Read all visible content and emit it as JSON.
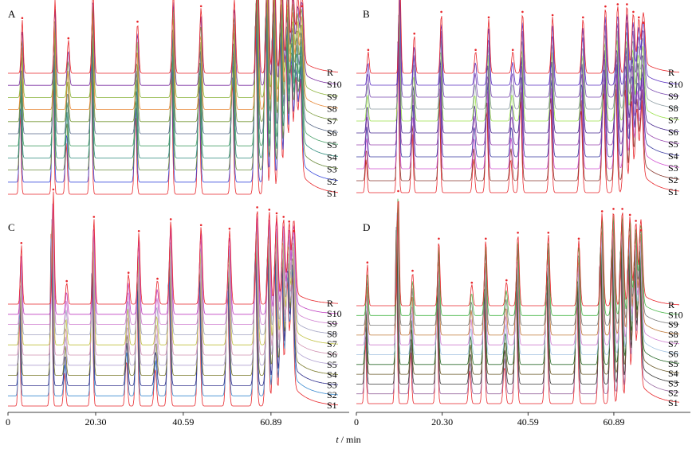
{
  "figure": {
    "xlabel_italic": "t",
    "xlabel_unit": " / min"
  },
  "chart_data": [
    {
      "type": "line",
      "title": "A",
      "xlim": [
        0,
        79
      ],
      "xticks": [
        0,
        20.3,
        40.59,
        60.89
      ],
      "xtick_labels": [
        "0",
        "20.30",
        "40.59",
        "60.89"
      ],
      "traces": [
        "R",
        "S10",
        "S9",
        "S8",
        "S7",
        "S6",
        "S5",
        "S4",
        "S3",
        "S2",
        "S1"
      ],
      "colors": [
        "#e8262b",
        "#7b2fa0",
        "#8cb43c",
        "#e88a3a",
        "#7a9a3a",
        "#5a6a8a",
        "#4aa06a",
        "#2a8a7a",
        "#6a8a3a",
        "#3a4adc",
        "#e8262b"
      ],
      "peaks_min": [
        2.8,
        10.4,
        13.5,
        19.2,
        29.5,
        37.8,
        44.2,
        51.9,
        57.3,
        59.6,
        61.2,
        62.9,
        64.3,
        65.5,
        66.6,
        67.6
      ],
      "peak_heights": [
        0.45,
        0.62,
        0.28,
        0.7,
        0.42,
        0.67,
        0.55,
        0.62,
        0.95,
        0.92,
        0.88,
        0.84,
        0.78,
        0.7,
        0.62,
        0.55
      ]
    },
    {
      "type": "line",
      "title": "B",
      "xlim": [
        0,
        79
      ],
      "xticks": [
        0,
        20.3,
        40.59,
        60.89
      ],
      "xtick_labels": [
        "0",
        "20.30",
        "40.59",
        "60.89"
      ],
      "traces": [
        "R",
        "S10",
        "S9",
        "S8",
        "S7",
        "S6",
        "S5",
        "S4",
        "S3",
        "S2",
        "S1"
      ],
      "colors": [
        "#e8262b",
        "#5a2fc0",
        "#7a4ab0",
        "#8a9aa0",
        "#9ae04a",
        "#4a2a90",
        "#9a4ab0",
        "#3a3aa0",
        "#d050d0",
        "#8a3a30",
        "#e8262b"
      ],
      "peaks_min": [
        2.3,
        9.8,
        13.2,
        19.6,
        27.7,
        30.8,
        36.5,
        38.8,
        45.9,
        53.1,
        58.4,
        61.3,
        63.5,
        65.0,
        66.3,
        67.4
      ],
      "peak_heights": [
        0.2,
        0.88,
        0.35,
        0.55,
        0.2,
        0.5,
        0.2,
        0.55,
        0.52,
        0.5,
        0.6,
        0.62,
        0.62,
        0.55,
        0.5,
        0.45
      ]
    },
    {
      "type": "line",
      "title": "C",
      "xlim": [
        0,
        79
      ],
      "xticks": [
        0,
        20.3,
        40.59,
        60.89
      ],
      "xtick_labels": [
        "0",
        "20.30",
        "40.59",
        "60.89"
      ],
      "traces": [
        "R",
        "S10",
        "S9",
        "S8",
        "S7",
        "S6",
        "S5",
        "S4",
        "S3",
        "S2",
        "S1"
      ],
      "colors": [
        "#e8262b",
        "#c040c0",
        "#d080d0",
        "#a0a0c0",
        "#c0c040",
        "#d090b0",
        "#b0a0d0",
        "#7a7a2a",
        "#2a2a8a",
        "#3a8ad0",
        "#e8262b"
      ],
      "peaks_min": [
        2.6,
        10.0,
        13.1,
        19.4,
        27.4,
        29.8,
        34.1,
        37.2,
        44.2,
        50.8,
        57.2,
        60.0,
        61.7,
        63.3,
        64.6,
        65.7
      ],
      "peak_heights": [
        0.5,
        0.95,
        0.18,
        0.72,
        0.25,
        0.6,
        0.2,
        0.7,
        0.65,
        0.62,
        0.8,
        0.78,
        0.75,
        0.72,
        0.68,
        0.6
      ]
    },
    {
      "type": "line",
      "title": "D",
      "xlim": [
        0,
        79
      ],
      "xticks": [
        0,
        20.3,
        40.59,
        60.89
      ],
      "xtick_labels": [
        "0",
        "20.30",
        "40.59",
        "60.89"
      ],
      "traces": [
        "R",
        "S10",
        "S9",
        "S8",
        "S7",
        "S6",
        "S5",
        "S4",
        "S3",
        "S2",
        "S1"
      ],
      "colors": [
        "#e8262b",
        "#4ab84a",
        "#7a7a7a",
        "#c07a3a",
        "#d080d0",
        "#a0c0e0",
        "#2a6a2a",
        "#6a5a2a",
        "#3a3a3a",
        "#9a6aa0",
        "#e8262b"
      ],
      "peaks_min": [
        2.1,
        9.4,
        12.8,
        19.0,
        26.8,
        30.1,
        35.0,
        37.7,
        44.9,
        52.1,
        57.6,
        60.3,
        62.4,
        64.2,
        65.6,
        66.8
      ],
      "peak_heights": [
        0.35,
        0.95,
        0.28,
        0.55,
        0.18,
        0.55,
        0.2,
        0.6,
        0.6,
        0.55,
        0.78,
        0.8,
        0.8,
        0.75,
        0.7,
        0.62
      ]
    }
  ]
}
